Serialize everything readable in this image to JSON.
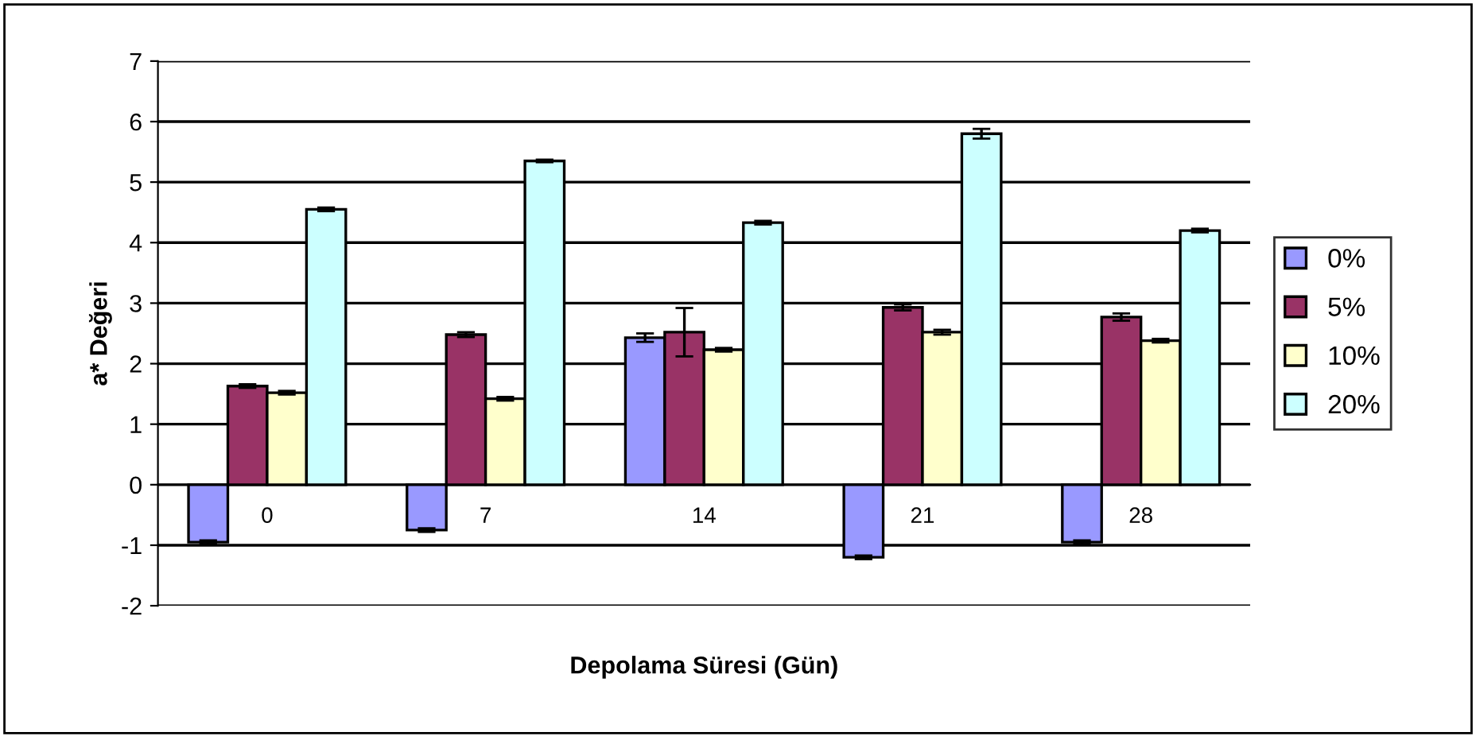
{
  "chart_data": {
    "type": "bar",
    "xlabel": "Depolama Süresi (Gün)",
    "ylabel": "a* Değeri",
    "categories": [
      "0",
      "7",
      "14",
      "21",
      "28"
    ],
    "series": [
      {
        "name": "0%",
        "color": "#9999ff",
        "values": [
          -0.95,
          -0.75,
          2.43,
          -1.2,
          -0.95
        ],
        "errors": [
          0.03,
          0.03,
          0.07,
          0.03,
          0.03
        ]
      },
      {
        "name": "5%",
        "color": "#993366",
        "values": [
          1.63,
          2.48,
          2.52,
          2.93,
          2.77
        ],
        "errors": [
          0.03,
          0.04,
          0.4,
          0.05,
          0.06
        ]
      },
      {
        "name": "10%",
        "color": "#ffffcc",
        "values": [
          1.52,
          1.42,
          2.23,
          2.52,
          2.38
        ],
        "errors": [
          0.03,
          0.03,
          0.03,
          0.04,
          0.03
        ]
      },
      {
        "name": "20%",
        "color": "#ccffff",
        "values": [
          4.55,
          5.35,
          4.33,
          5.8,
          4.2
        ],
        "errors": [
          0.03,
          0.02,
          0.03,
          0.08,
          0.03
        ]
      }
    ],
    "ylim": [
      -2,
      7
    ],
    "yticks": [
      -2,
      -1,
      0,
      1,
      2,
      3,
      4,
      5,
      6,
      7
    ],
    "grid": "y",
    "legend": "right"
  }
}
